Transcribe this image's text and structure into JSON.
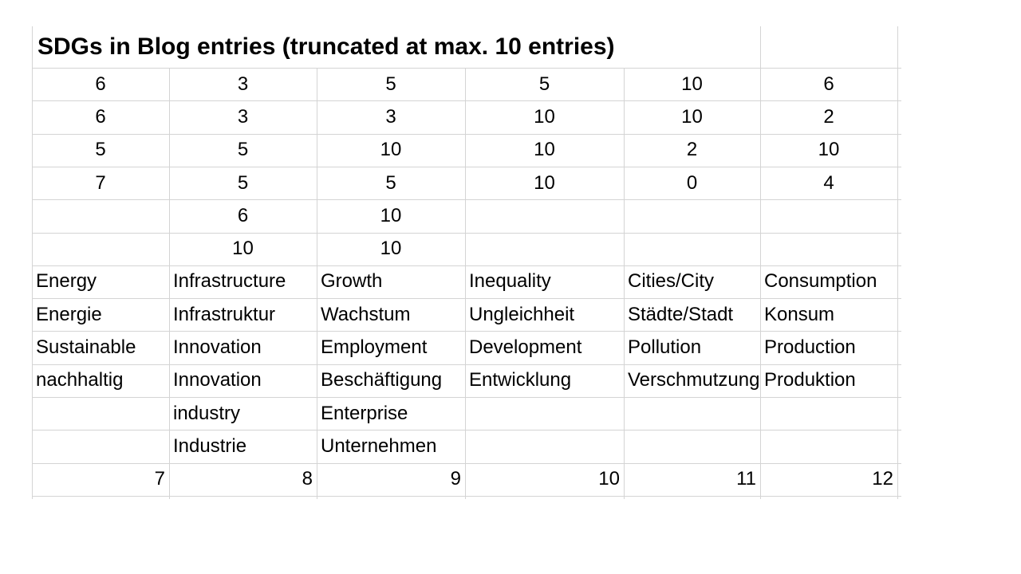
{
  "sheet": {
    "title": "SDGs in Blog entries (truncated at max. 10 entries)",
    "number_rows": [
      [
        6,
        3,
        5,
        5,
        10,
        6
      ],
      [
        6,
        3,
        3,
        10,
        10,
        2
      ],
      [
        5,
        5,
        10,
        10,
        2,
        10
      ],
      [
        7,
        5,
        5,
        10,
        0,
        4
      ],
      [
        null,
        6,
        10,
        null,
        null,
        null
      ],
      [
        null,
        10,
        10,
        null,
        null,
        null
      ]
    ],
    "keyword_rows": [
      [
        "Energy",
        "Infrastructure",
        "Growth",
        "Inequality",
        "Cities/City",
        "Consumption"
      ],
      [
        "Energie",
        "Infrastruktur",
        "Wachstum",
        "Ungleichheit",
        "Städte/Stadt",
        "Konsum"
      ],
      [
        "Sustainable",
        "Innovation",
        "Employment",
        "Development",
        "Pollution",
        "Production"
      ],
      [
        "nachhaltig",
        "Innovation",
        "Beschäftigung",
        "Entwicklung",
        "Verschmutzung",
        "Produktion"
      ],
      [
        null,
        "industry",
        "Enterprise",
        null,
        null,
        null
      ],
      [
        null,
        "Industrie",
        "Unternehmen",
        null,
        null,
        null
      ]
    ],
    "sdg_numbers": [
      7,
      8,
      9,
      10,
      11,
      12
    ]
  }
}
